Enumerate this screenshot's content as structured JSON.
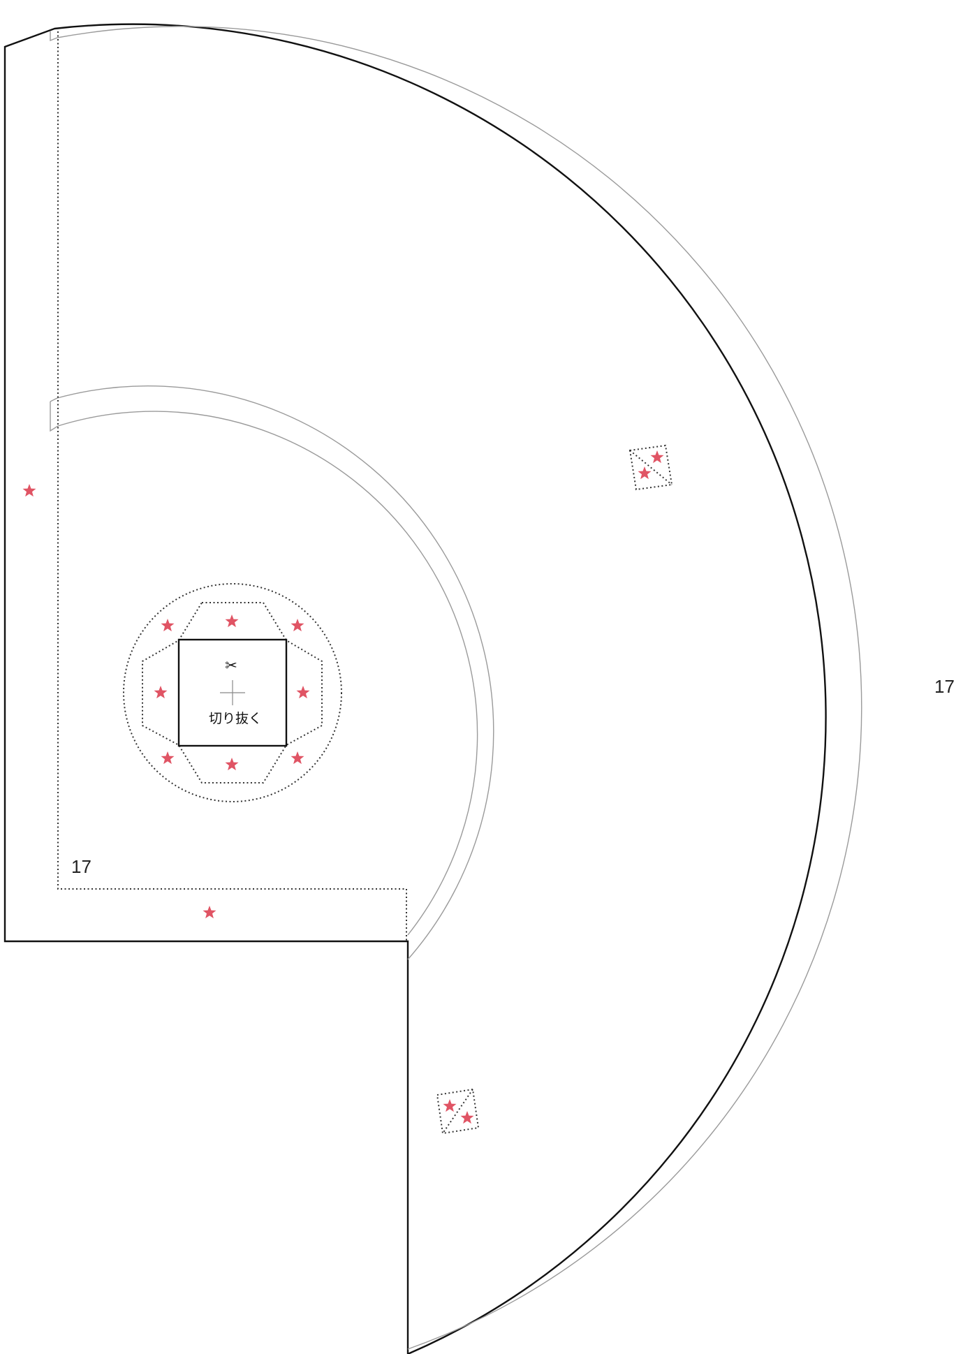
{
  "labels": {
    "page_number_right": "17",
    "page_number_left": "17",
    "cut_out": "切り抜く",
    "scissors": "✂"
  },
  "icons": {
    "star": "star-icon",
    "scissors": "scissors-icon",
    "crosshair": "center-cross-icon"
  },
  "colors": {
    "cut_line": "#111111",
    "guide_line": "#9a9a9a",
    "fold_line": "#333333",
    "star": "#e05464"
  }
}
